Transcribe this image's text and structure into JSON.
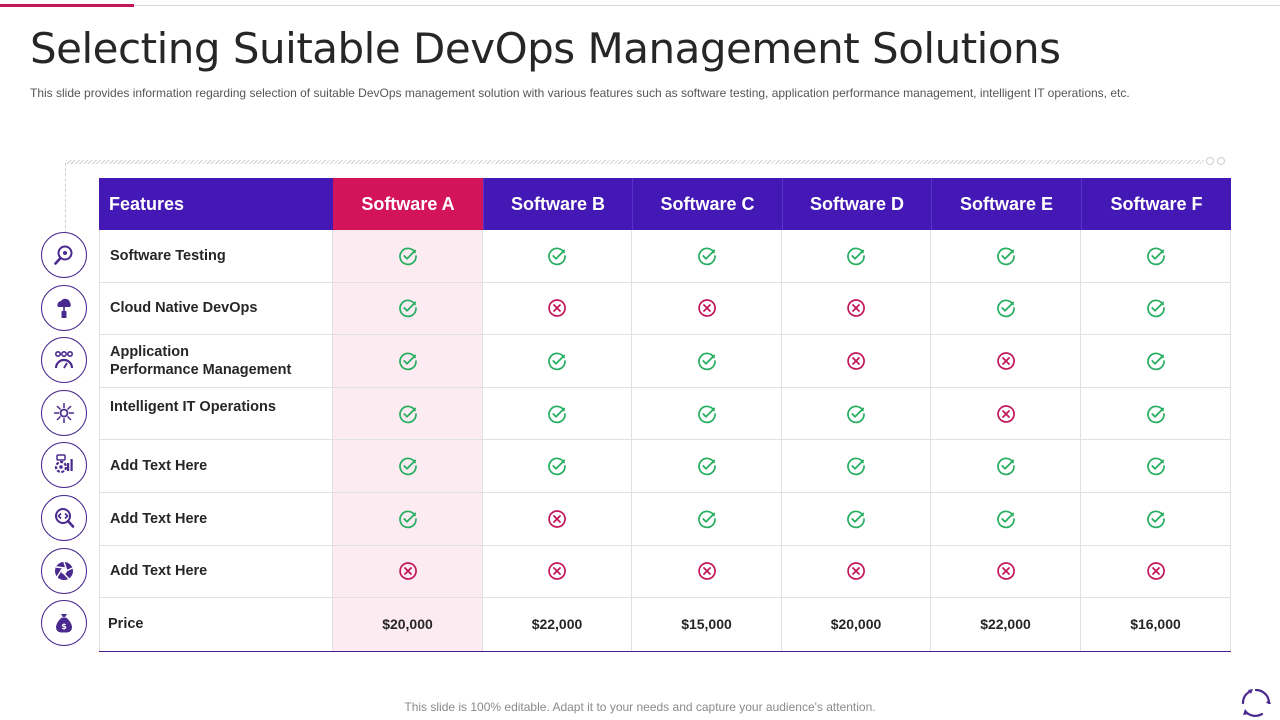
{
  "slide": {
    "title": "Selecting Suitable DevOps Management Solutions",
    "subtitle": "This slide provides information regarding selection of suitable DevOps management solution with various features such as software testing, application performance management, intelligent IT operations, etc.",
    "footer": "This slide is 100% editable. Adapt it to your needs and capture your audience's attention."
  },
  "colors": {
    "header_bg": "#4318b5",
    "highlight_header_bg": "#d4145a",
    "highlight_column_bg": "#fcebf1",
    "check": "#27ae60",
    "cross": "#c2185b",
    "icon_stroke": "#4a2a8f"
  },
  "table": {
    "columns": [
      "Features",
      "Software A",
      "Software B",
      "Software C",
      "Software D",
      "Software E",
      "Software F"
    ],
    "highlight_column": "Software A",
    "rows": [
      {
        "feature": "Software Testing",
        "icon": "magnifier-icon",
        "values": [
          "yes",
          "yes",
          "yes",
          "yes",
          "yes",
          "yes"
        ]
      },
      {
        "feature": "Cloud Native DevOps",
        "icon": "cloud-server-icon",
        "values": [
          "yes",
          "no",
          "no",
          "no",
          "yes",
          "yes"
        ]
      },
      {
        "feature": "Application Performance Management",
        "feature_line1": "Application",
        "feature_line2": "Performance Management",
        "icon": "performance-gauge-icon",
        "values": [
          "yes",
          "yes",
          "yes",
          "no",
          "no",
          "yes"
        ]
      },
      {
        "feature": "Intelligent IT Operations",
        "icon": "network-hub-icon",
        "values": [
          "yes",
          "yes",
          "yes",
          "yes",
          "no",
          "yes"
        ]
      },
      {
        "feature": "Add  Text Here",
        "icon": "settings-chart-icon",
        "values": [
          "yes",
          "yes",
          "yes",
          "yes",
          "yes",
          "yes"
        ]
      },
      {
        "feature": "Add  Text Here",
        "icon": "code-search-icon",
        "values": [
          "yes",
          "no",
          "yes",
          "yes",
          "yes",
          "yes"
        ]
      },
      {
        "feature": "Add  Text Here",
        "icon": "aperture-icon",
        "values": [
          "no",
          "no",
          "no",
          "no",
          "no",
          "no"
        ]
      }
    ],
    "price": {
      "label": "Price",
      "icon": "money-bag-icon",
      "values": [
        "$20,000",
        "$22,000",
        "$15,000",
        "$20,000",
        "$22,000",
        "$16,000"
      ]
    }
  }
}
